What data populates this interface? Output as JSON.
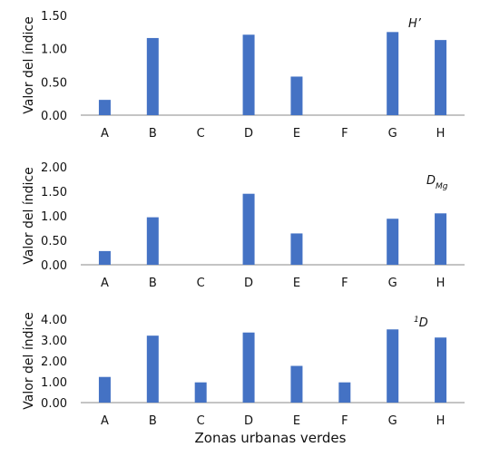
{
  "chart_data": [
    {
      "type": "bar",
      "categories": [
        "A",
        "B",
        "C",
        "D",
        "E",
        "F",
        "G",
        "H"
      ],
      "values": [
        0.23,
        1.16,
        0,
        1.21,
        0.58,
        0,
        1.25,
        1.13
      ],
      "ylabel": "Valor del índice",
      "yticks": [
        "0.00",
        "0.50",
        "1.00",
        "1.50"
      ],
      "ylim": [
        0,
        1.5
      ],
      "annotation": {
        "main": "H’",
        "sub": ""
      },
      "color": "#4472c4",
      "grid": false
    },
    {
      "type": "bar",
      "categories": [
        "A",
        "B",
        "C",
        "D",
        "E",
        "F",
        "G",
        "H"
      ],
      "values": [
        0.28,
        0.97,
        0,
        1.45,
        0.64,
        0,
        0.94,
        1.05
      ],
      "ylabel": "Valor del índice",
      "yticks": [
        "0.00",
        "0.50",
        "1.00",
        "1.50",
        "2.00"
      ],
      "ylim": [
        0,
        2.0
      ],
      "annotation": {
        "main": "D",
        "sub": "Mg"
      },
      "color": "#4472c4",
      "grid": false
    },
    {
      "type": "bar",
      "categories": [
        "A",
        "B",
        "C",
        "D",
        "E",
        "F",
        "G",
        "H"
      ],
      "values": [
        1.23,
        3.21,
        0.97,
        3.36,
        1.76,
        0.97,
        3.51,
        3.12
      ],
      "ylabel": "Valor del índice",
      "yticks": [
        "0.00",
        "1.00",
        "2.00",
        "3.00",
        "4.00"
      ],
      "ylim": [
        0,
        4.0
      ],
      "annotation": {
        "sup": "1",
        "main": "D"
      },
      "color": "#4472c4",
      "grid": false
    }
  ],
  "xlabel": "Zonas urbanas verdes"
}
